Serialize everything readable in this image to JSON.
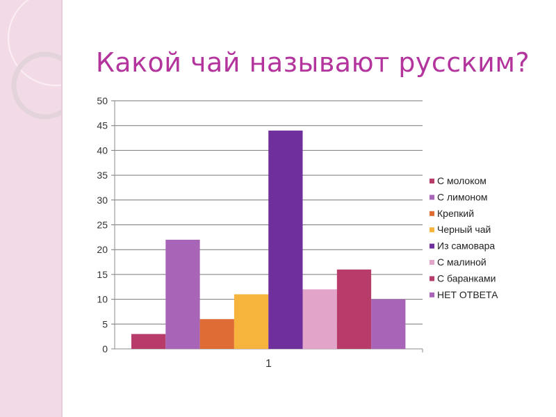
{
  "title": "Какой чай называют русским?",
  "chart_data": {
    "type": "bar",
    "title": "Какой чай называют русским?",
    "categories": [
      "1"
    ],
    "ylim": [
      0,
      50
    ],
    "yticks": [
      0,
      5,
      10,
      15,
      20,
      25,
      30,
      35,
      40,
      45,
      50
    ],
    "grid": true,
    "legend_position": "right",
    "series": [
      {
        "name": "С молоком",
        "values": [
          3
        ],
        "color": "#b83c6a"
      },
      {
        "name": "С лимоном",
        "values": [
          22
        ],
        "color": "#a865b8"
      },
      {
        "name": "Крепкий",
        "values": [
          6
        ],
        "color": "#df6c34"
      },
      {
        "name": "Черный чай",
        "values": [
          11
        ],
        "color": "#f6b43c"
      },
      {
        "name": "Из самовара",
        "values": [
          44
        ],
        "color": "#6f2f9c"
      },
      {
        "name": "С малиной",
        "values": [
          12
        ],
        "color": "#e2a4c8"
      },
      {
        "name": "С баранками",
        "values": [
          16
        ],
        "color": "#b83c6a"
      },
      {
        "name": "НЕТ ОТВЕТА",
        "values": [
          10
        ],
        "color": "#a865b8"
      }
    ]
  }
}
